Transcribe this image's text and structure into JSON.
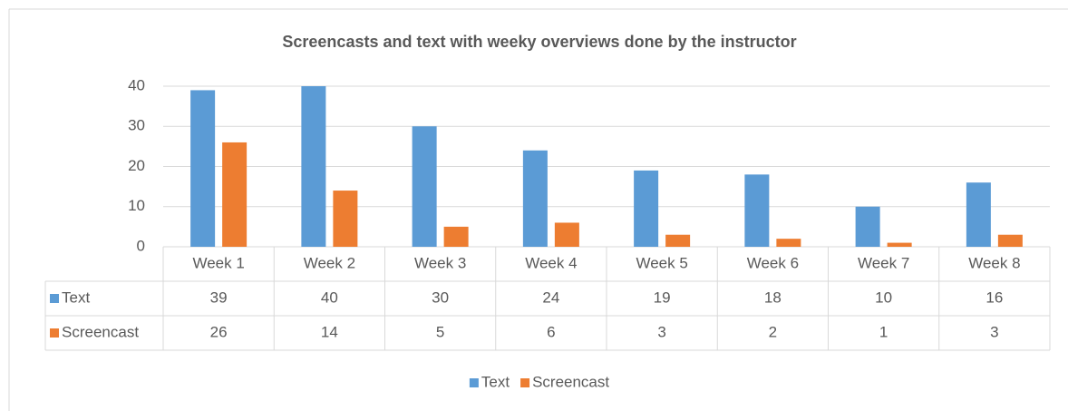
{
  "chart_data": {
    "type": "bar",
    "title": "Screencasts and text with weeky overviews done by the instructor",
    "categories": [
      "Week 1",
      "Week 2",
      "Week 3",
      "Week 4",
      "Week 5",
      "Week 6",
      "Week 7",
      "Week 8"
    ],
    "series": [
      {
        "name": "Text",
        "color": "#5b9bd5",
        "values": [
          39,
          40,
          30,
          24,
          19,
          18,
          10,
          16
        ]
      },
      {
        "name": "Screencast",
        "color": "#ed7d31",
        "values": [
          26,
          14,
          5,
          6,
          3,
          2,
          1,
          3
        ]
      }
    ],
    "ylim": [
      0,
      40
    ],
    "yticks": [
      0,
      10,
      20,
      30,
      40
    ],
    "grid": true,
    "legend": "bottom"
  }
}
